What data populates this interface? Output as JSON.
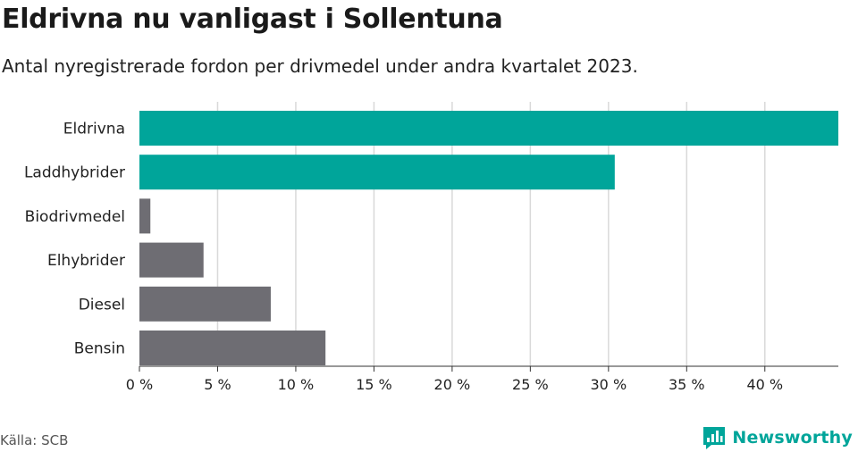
{
  "header": {
    "title": "Eldrivna nu vanligast i Sollentuna",
    "subtitle": "Antal nyregistrerade fordon per drivmedel under andra kvartalet 2023."
  },
  "footer": {
    "source": "Källa: SCB",
    "brand": "Newsworthy",
    "brand_icon": "bar-chart-logo-icon"
  },
  "colors": {
    "highlight": "#00a59a",
    "neutral": "#6e6d73",
    "grid": "#d9d9d9",
    "axis": "#333333"
  },
  "chart_data": {
    "type": "bar",
    "orientation": "horizontal",
    "categories": [
      "Eldrivna",
      "Laddhybrider",
      "Biodrivmedel",
      "Elhybrider",
      "Diesel",
      "Bensin"
    ],
    "values": [
      44.7,
      30.4,
      0.7,
      4.1,
      8.4,
      11.9
    ],
    "highlighted": [
      true,
      true,
      false,
      false,
      false,
      false
    ],
    "xlim": [
      0,
      44.7
    ],
    "xticks": [
      0,
      5,
      10,
      15,
      20,
      25,
      30,
      35,
      40
    ],
    "tick_suffix": " %",
    "grid": true
  }
}
